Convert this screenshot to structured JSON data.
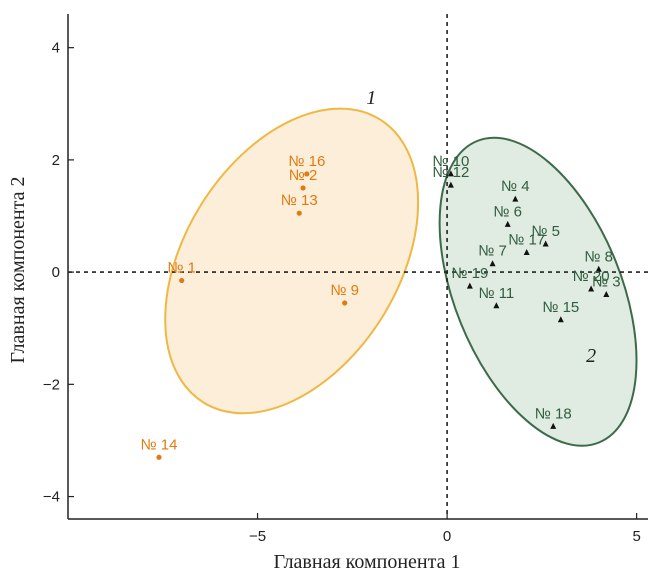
{
  "chart_data": {
    "type": "scatter",
    "xlabel": "Главная компонента 1",
    "ylabel": "Главная компонента 2",
    "xlim": [
      -10,
      5.3
    ],
    "ylim": [
      -4.4,
      4.6
    ],
    "xticks": [
      -5,
      0,
      5
    ],
    "xtick_labels": [
      "−5",
      "0",
      "5"
    ],
    "yticks": [
      -4,
      -2,
      0,
      2,
      4
    ],
    "ytick_labels": [
      "−4",
      "−2",
      "0",
      "2",
      "4"
    ],
    "zero_lines": true,
    "colors": {
      "group1": "#e07b12",
      "group1_fill": "#fdebd3",
      "group1_edge": "#f0b743",
      "group2": "#2f5e3e",
      "group2_fill": "#dbe7dd",
      "group2_edge": "#3d6b4a"
    },
    "clusters": [
      {
        "label": "1",
        "cx": -4.1,
        "cy": 0.2,
        "rx": 4.4,
        "ry": 2.0,
        "angle_deg": 58,
        "label_x": -2.0,
        "label_y": 3.0
      },
      {
        "label": "2",
        "cx": 2.4,
        "cy": -0.35,
        "rx": 2.2,
        "ry": 3.05,
        "angle_deg": 22,
        "label_x": 3.8,
        "label_y": -1.6
      }
    ],
    "series": [
      {
        "group": 1,
        "points": [
          {
            "label": "№ 16",
            "x": -3.7,
            "y": 1.75
          },
          {
            "label": "№ 2",
            "x": -3.8,
            "y": 1.5
          },
          {
            "label": "№ 13",
            "x": -3.9,
            "y": 1.05
          },
          {
            "label": "№ 1",
            "x": -7.0,
            "y": -0.15
          },
          {
            "label": "№ 9",
            "x": -2.7,
            "y": -0.55
          },
          {
            "label": "№ 14",
            "x": -7.6,
            "y": -3.3
          }
        ]
      },
      {
        "group": 2,
        "points": [
          {
            "label": "№ 10",
            "x": 0.1,
            "y": 1.75
          },
          {
            "label": "№ 12",
            "x": 0.1,
            "y": 1.55
          },
          {
            "label": "№ 4",
            "x": 1.8,
            "y": 1.3
          },
          {
            "label": "№ 6",
            "x": 1.6,
            "y": 0.85
          },
          {
            "label": "№ 5",
            "x": 2.6,
            "y": 0.5
          },
          {
            "label": "№ 17",
            "x": 2.1,
            "y": 0.35
          },
          {
            "label": "№ 7",
            "x": 1.2,
            "y": 0.15
          },
          {
            "label": "№ 19",
            "x": 0.6,
            "y": -0.25
          },
          {
            "label": "№ 11",
            "x": 1.3,
            "y": -0.6
          },
          {
            "label": "№ 8",
            "x": 4.0,
            "y": 0.05
          },
          {
            "label": "№ 3",
            "x": 4.2,
            "y": -0.4
          },
          {
            "label": "№ 20",
            "x": 3.8,
            "y": -0.3
          },
          {
            "label": "№ 15",
            "x": 3.0,
            "y": -0.85
          },
          {
            "label": "№ 18",
            "x": 2.8,
            "y": -2.75
          }
        ]
      }
    ]
  }
}
